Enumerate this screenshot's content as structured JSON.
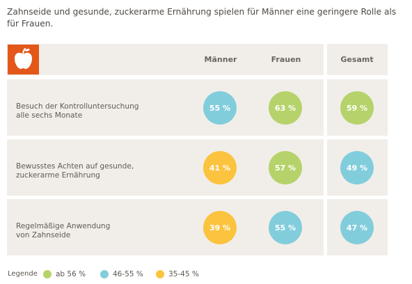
{
  "heading": "Zahnseide und gesunde, zuckerarme Ernährung spielen für Männer eine geringere Rolle als für Frauen.",
  "icon": "apple-icon",
  "colors": {
    "green": "#b6d36b",
    "blue": "#82cddc",
    "yellow": "#fbc33e",
    "panel": "#f1eee9",
    "logo": "#e4571a"
  },
  "columns": [
    "Männer",
    "Frauen",
    "Gesamt"
  ],
  "legend": {
    "title": "Legende",
    "items": [
      {
        "label": "ab 56 %",
        "color": "green"
      },
      {
        "label": "46-55 %",
        "color": "blue"
      },
      {
        "label": "35-45 %",
        "color": "yellow"
      }
    ]
  },
  "chart_data": {
    "type": "table",
    "title": "Zahnseide und gesunde, zuckerarme Ernährung spielen für Männer eine geringere Rolle als für Frauen.",
    "categories": [
      "Besuch der Kontrolluntersuchung alle sechs Monate",
      "Bewusstes Achten auf gesunde, zuckerarme Ernährung",
      "Regelmäßige Anwendung von Zahnseide"
    ],
    "category_lines": [
      [
        "Besuch der Kontrolluntersuchung",
        "alle sechs Monate"
      ],
      [
        "Bewusstes Achten auf gesunde,",
        "zuckerarme Ernährung"
      ],
      [
        "Regelmäßige Anwendung",
        "von Zahnseide"
      ]
    ],
    "series": [
      {
        "name": "Männer",
        "values": [
          55,
          41,
          39
        ],
        "labels": [
          "55 %",
          "41 %",
          "39 %"
        ],
        "colors": [
          "blue",
          "yellow",
          "yellow"
        ]
      },
      {
        "name": "Frauen",
        "values": [
          63,
          57,
          55
        ],
        "labels": [
          "63 %",
          "57 %",
          "55 %"
        ],
        "colors": [
          "green",
          "green",
          "blue"
        ]
      },
      {
        "name": "Gesamt",
        "values": [
          59,
          49,
          47
        ],
        "labels": [
          "59 %",
          "49 %",
          "47 %"
        ],
        "colors": [
          "green",
          "blue",
          "blue"
        ]
      }
    ]
  }
}
